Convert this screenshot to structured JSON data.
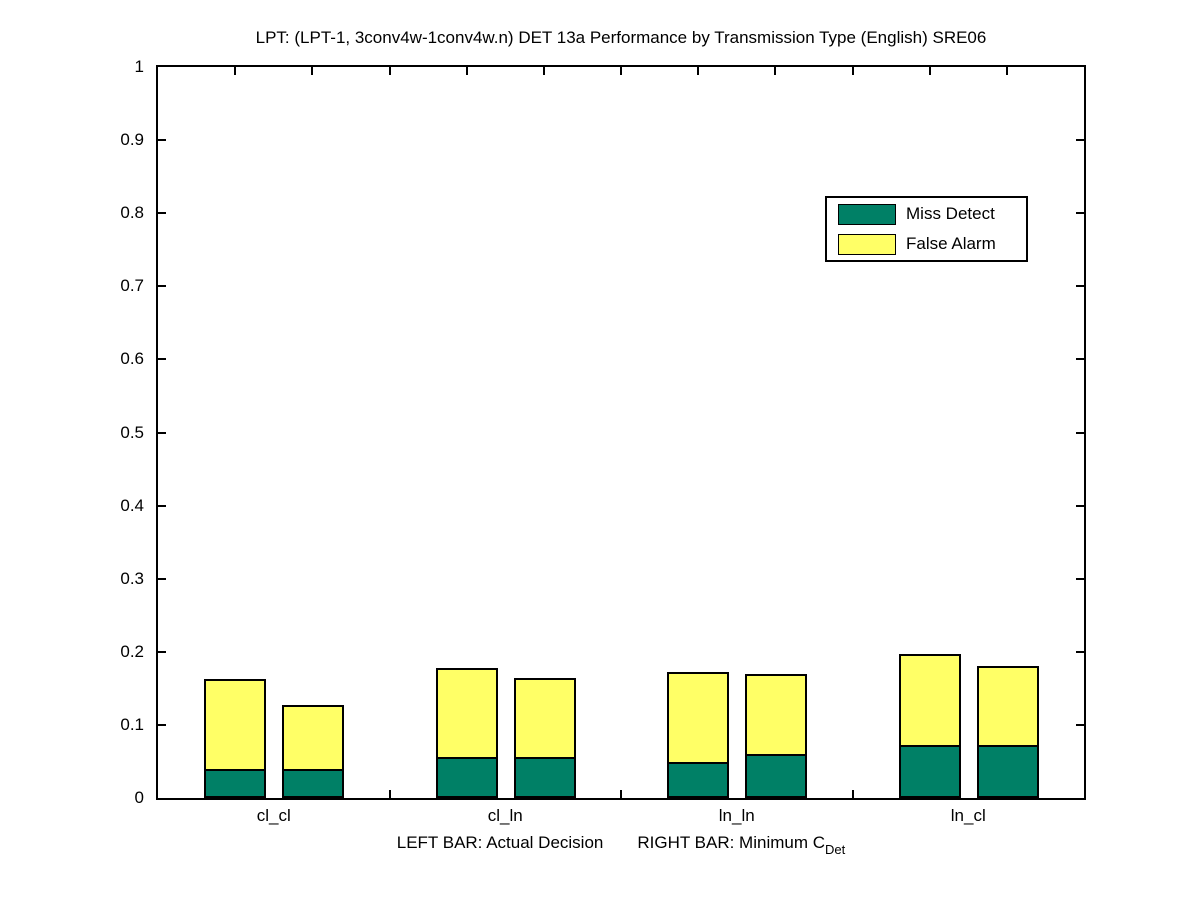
{
  "chart_data": {
    "type": "bar",
    "stacked": true,
    "title": "LPT: (LPT-1, 3conv4w-1conv4w.n) DET 13a Performance by Transmission Type (English) SRE06",
    "categories": [
      "cl_cl",
      "cl_ln",
      "ln_ln",
      "ln_cl"
    ],
    "bar_pair_meaning": {
      "left": "Actual Decision",
      "right": "Minimum CDet"
    },
    "series_names": [
      "Miss Detect",
      "False Alarm"
    ],
    "groups": [
      {
        "category": "cl_cl",
        "bars": [
          {
            "role": "actual-decision",
            "miss_detect": 0.04,
            "false_alarm": 0.123
          },
          {
            "role": "minimum-cdet",
            "miss_detect": 0.04,
            "false_alarm": 0.087
          }
        ]
      },
      {
        "category": "cl_ln",
        "bars": [
          {
            "role": "actual-decision",
            "miss_detect": 0.056,
            "false_alarm": 0.122
          },
          {
            "role": "minimum-cdet",
            "miss_detect": 0.056,
            "false_alarm": 0.108
          }
        ]
      },
      {
        "category": "ln_ln",
        "bars": [
          {
            "role": "actual-decision",
            "miss_detect": 0.049,
            "false_alarm": 0.123
          },
          {
            "role": "minimum-cdet",
            "miss_detect": 0.06,
            "false_alarm": 0.109
          }
        ]
      },
      {
        "category": "ln_cl",
        "bars": [
          {
            "role": "actual-decision",
            "miss_detect": 0.072,
            "false_alarm": 0.125
          },
          {
            "role": "minimum-cdet",
            "miss_detect": 0.072,
            "false_alarm": 0.109
          }
        ]
      }
    ],
    "legend": {
      "position": "upper-right-inside",
      "entries": [
        {
          "label": "Miss Detect",
          "color": "#008066"
        },
        {
          "label": "False Alarm",
          "color": "#ffff66"
        }
      ]
    },
    "ylim": [
      0,
      1
    ],
    "yticks": [
      {
        "value": 0,
        "label": "0"
      },
      {
        "value": 0.1,
        "label": "0.1"
      },
      {
        "value": 0.2,
        "label": "0.2"
      },
      {
        "value": 0.3,
        "label": "0.3"
      },
      {
        "value": 0.4,
        "label": "0.4"
      },
      {
        "value": 0.5,
        "label": "0.5"
      },
      {
        "value": 0.6,
        "label": "0.6"
      },
      {
        "value": 0.7,
        "label": "0.7"
      },
      {
        "value": 0.8,
        "label": "0.8"
      },
      {
        "value": 0.9,
        "label": "0.9"
      },
      {
        "value": 1,
        "label": "1"
      }
    ],
    "xtick_divisions": 12,
    "grid": false,
    "xlabel": {
      "left_text": "LEFT BAR: Actual Decision",
      "right_text": "RIGHT BAR: Minimum C",
      "right_subscript": "Det"
    }
  }
}
